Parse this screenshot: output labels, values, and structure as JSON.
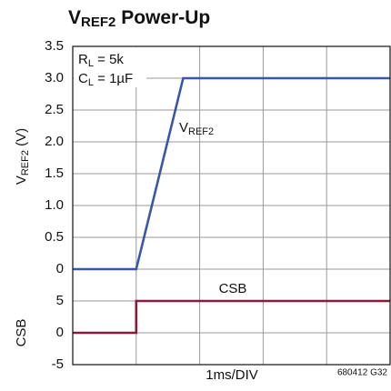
{
  "chart_data": [
    {
      "type": "line",
      "title": {
        "main": "V",
        "sub": "REF2",
        "rest": " Power-Up"
      },
      "ylabel": {
        "main": "V",
        "sub": "REF2",
        "rest": " (V)"
      },
      "xlim": [
        0,
        5
      ],
      "xticks": [
        0,
        1,
        2,
        3,
        4,
        5
      ],
      "ylim": [
        0,
        3.5
      ],
      "yticks": [
        0,
        0.5,
        {
          "value": 1,
          "label": "1.0"
        },
        1.5,
        {
          "value": 2,
          "label": "2.0"
        },
        2.5,
        {
          "value": 3,
          "label": "3.0"
        },
        3.5
      ],
      "grid": true,
      "annotations": [
        {
          "main": "R",
          "sub": "L",
          "rest": " = 5k"
        },
        {
          "main": "C",
          "sub": "L",
          "rest": " = 1µF"
        },
        {
          "main": "V",
          "sub": "REF2",
          "rest": ""
        }
      ],
      "series": [
        {
          "name": "VREF2",
          "color": "#3b56a6",
          "x": [
            0,
            1,
            1.74,
            5
          ],
          "values": [
            0,
            0,
            3,
            3
          ]
        }
      ]
    },
    {
      "type": "line",
      "ylabel": "CSB",
      "xlabel": "1ms/DIV",
      "note": "680412 G32",
      "xlim": [
        0,
        5
      ],
      "xticks": [
        0,
        1,
        2,
        3,
        4,
        5
      ],
      "ylim": [
        -5,
        10
      ],
      "yticks": [
        -5,
        0,
        5
      ],
      "grid": true,
      "series": [
        {
          "name": "CSB",
          "color": "#8b1a3a",
          "x": [
            0,
            1,
            1,
            5
          ],
          "values": [
            0,
            0,
            5,
            5
          ]
        }
      ]
    }
  ]
}
